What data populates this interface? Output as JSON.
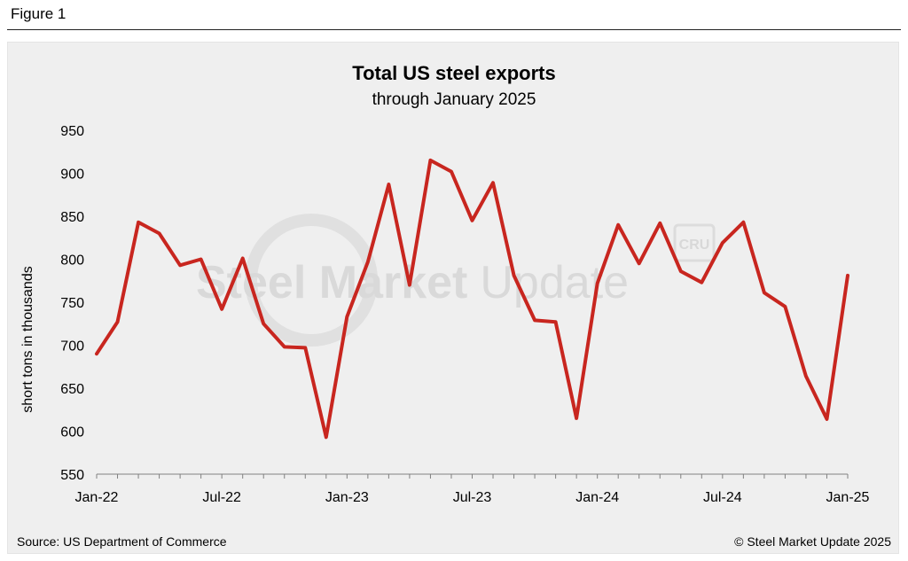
{
  "figure_label": "Figure 1",
  "footer": {
    "source": "Source: US Department of Commerce",
    "copyright": "© Steel Market Update 2025"
  },
  "watermark": {
    "text_bold": "Steel Market",
    "text_light": "Update",
    "badge": "CRU"
  },
  "colors": {
    "line": "#c8261f",
    "panel": "#efefef",
    "axis": "#808080"
  },
  "chart_data": {
    "type": "line",
    "title": "Total US steel exports",
    "subtitle": "through January 2025",
    "xlabel": "",
    "ylabel": "short tons in thousands",
    "ylim": [
      550,
      950
    ],
    "yticks": [
      550,
      600,
      650,
      700,
      750,
      800,
      850,
      900,
      950
    ],
    "grid": false,
    "x_tick_labels": [
      "Jan-22",
      "Jul-22",
      "Jan-23",
      "Jul-23",
      "Jan-24",
      "Jul-24",
      "Jan-25"
    ],
    "x_tick_label_months": [
      0,
      6,
      12,
      18,
      24,
      30,
      36
    ],
    "series": [
      {
        "name": "Total US steel exports",
        "months": [
          "Jan-22",
          "Feb-22",
          "Mar-22",
          "Apr-22",
          "May-22",
          "Jun-22",
          "Jul-22",
          "Aug-22",
          "Sep-22",
          "Oct-22",
          "Nov-22",
          "Dec-22",
          "Jan-23",
          "Feb-23",
          "Mar-23",
          "Apr-23",
          "May-23",
          "Jun-23",
          "Jul-23",
          "Aug-23",
          "Sep-23",
          "Oct-23",
          "Nov-23",
          "Dec-23",
          "Jan-24",
          "Feb-24",
          "Mar-24",
          "Apr-24",
          "May-24",
          "Jun-24",
          "Jul-24",
          "Aug-24",
          "Sep-24",
          "Oct-24",
          "Nov-24",
          "Dec-24",
          "Jan-25"
        ],
        "values": [
          690,
          727,
          843,
          830,
          793,
          800,
          742,
          801,
          725,
          698,
          697,
          593,
          733,
          797,
          887,
          770,
          915,
          902,
          845,
          889,
          781,
          729,
          727,
          615,
          772,
          840,
          795,
          842,
          786,
          773,
          819,
          843,
          761,
          745,
          664,
          614,
          781
        ]
      }
    ]
  }
}
